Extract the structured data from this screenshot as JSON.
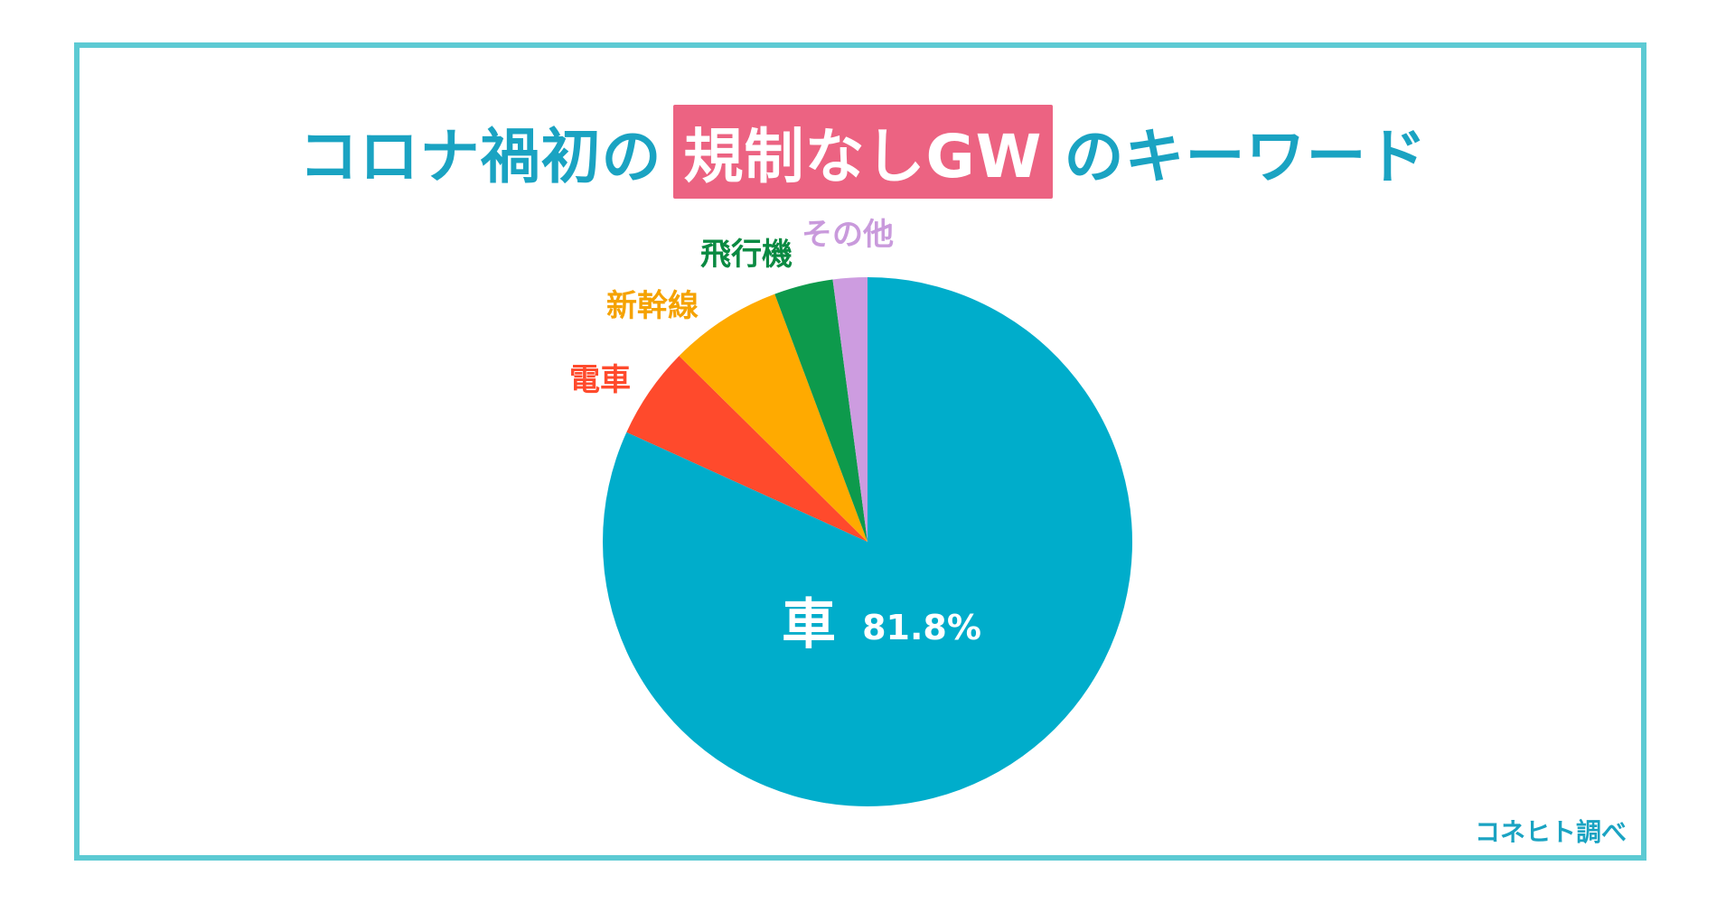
{
  "title": {
    "prefix": "コロナ禍初の",
    "highlight": "規制なしGW",
    "suffix": "のキーワード"
  },
  "source_note": "コネヒト調べ",
  "colors": {
    "frame": "#5ccad3",
    "title_text": "#1aa3c2",
    "title_highlight_bg": "#ec6382"
  },
  "chart_data": {
    "type": "pie",
    "start": "12 o'clock",
    "direction": "clockwise",
    "slices": [
      {
        "label": "車",
        "value": 81.8,
        "value_label": "81.8%",
        "color": "#00adcb",
        "label_color": "#ffffff"
      },
      {
        "label": "電車",
        "value": 5.6,
        "color": "#ff4a2c",
        "label_color": "#ff4a2c"
      },
      {
        "label": "新幹線",
        "value": 6.9,
        "color": "#ffaa00",
        "label_color": "#f5a200"
      },
      {
        "label": "飛行機",
        "value": 3.6,
        "color": "#0d9a4c",
        "label_color": "#0a8a42"
      },
      {
        "label": "その他",
        "value": 2.1,
        "color": "#cd9ce0",
        "label_color": "#c99adc"
      }
    ]
  }
}
